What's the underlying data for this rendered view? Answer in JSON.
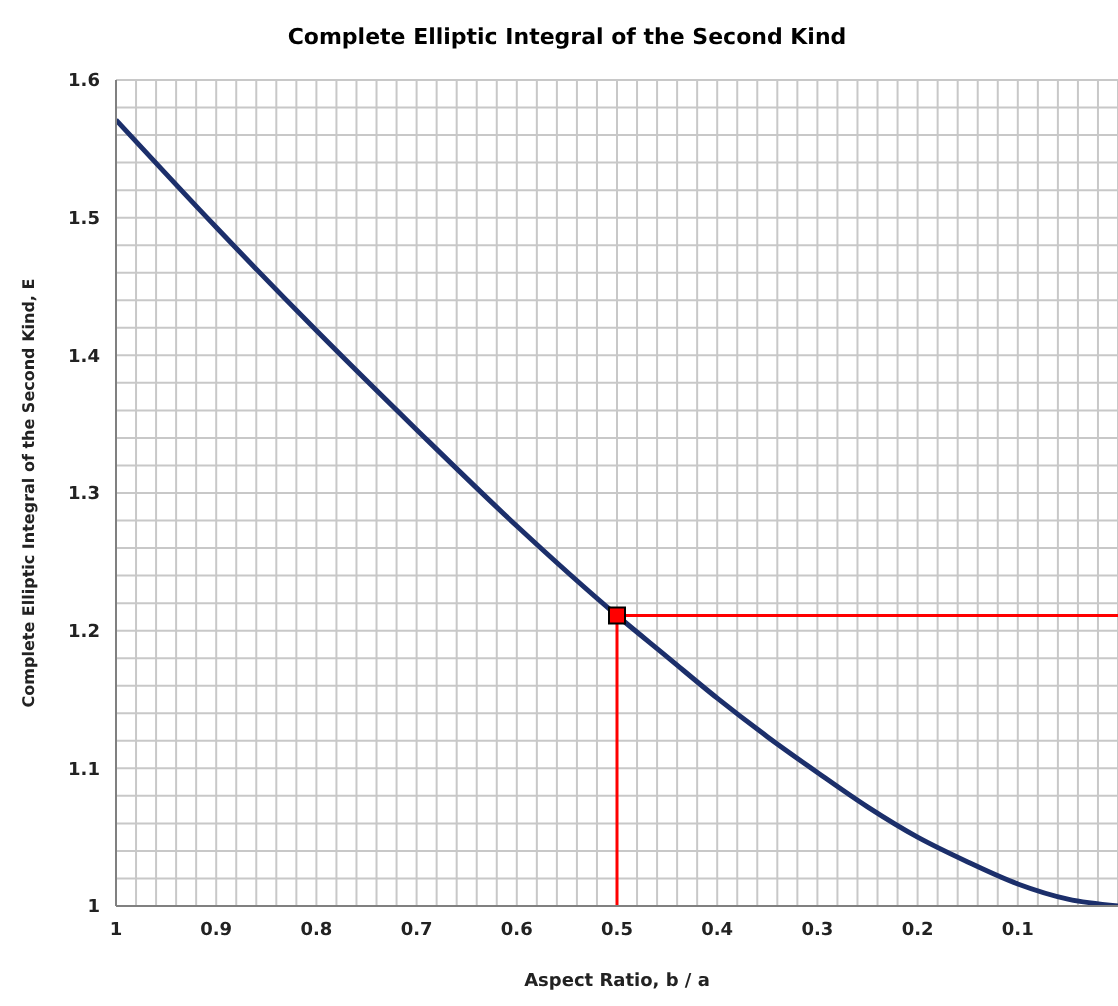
{
  "chart_data": {
    "type": "line",
    "title": "Complete  Elliptic Integral of the Second  Kind",
    "xlabel": "Aspect Ratio,  b / a",
    "ylabel": "Complete Elliptic Integral of the Second Kind,  E",
    "xlim": [
      1,
      0
    ],
    "ylim": [
      1,
      1.6
    ],
    "xticks": [
      1,
      {
        "value": 0.98,
        "label": null
      },
      {
        "value": 0.96,
        "label": null
      },
      {
        "value": 0.94,
        "label": null
      },
      {
        "value": 0.92,
        "label": null
      },
      0.9,
      {
        "value": 0.88,
        "label": null
      },
      {
        "value": 0.86,
        "label": null
      },
      {
        "value": 0.84,
        "label": null
      },
      {
        "value": 0.82,
        "label": null
      },
      0.8,
      {
        "value": 0.78,
        "label": null
      },
      {
        "value": 0.76,
        "label": null
      },
      {
        "value": 0.74,
        "label": null
      },
      {
        "value": 0.72,
        "label": null
      },
      0.7,
      {
        "value": 0.68,
        "label": null
      },
      {
        "value": 0.66,
        "label": null
      },
      {
        "value": 0.64,
        "label": null
      },
      {
        "value": 0.62,
        "label": null
      },
      0.6,
      {
        "value": 0.58,
        "label": null
      },
      {
        "value": 0.56,
        "label": null
      },
      {
        "value": 0.54,
        "label": null
      },
      {
        "value": 0.52,
        "label": null
      },
      0.5,
      {
        "value": 0.48,
        "label": null
      },
      {
        "value": 0.46,
        "label": null
      },
      {
        "value": 0.44,
        "label": null
      },
      {
        "value": 0.42,
        "label": null
      },
      0.4,
      {
        "value": 0.38,
        "label": null
      },
      {
        "value": 0.36,
        "label": null
      },
      {
        "value": 0.34,
        "label": null
      },
      {
        "value": 0.32,
        "label": null
      },
      0.3,
      {
        "value": 0.28,
        "label": null
      },
      {
        "value": 0.26,
        "label": null
      },
      {
        "value": 0.24,
        "label": null
      },
      {
        "value": 0.22,
        "label": null
      },
      0.2,
      {
        "value": 0.18,
        "label": null
      },
      {
        "value": 0.16,
        "label": null
      },
      {
        "value": 0.14,
        "label": null
      },
      {
        "value": 0.12,
        "label": null
      },
      0.1,
      {
        "value": 0.08,
        "label": null
      },
      {
        "value": 0.06,
        "label": null
      },
      {
        "value": 0.04,
        "label": null
      },
      {
        "value": 0.02,
        "label": null
      },
      {
        "value": 0,
        "label": null
      }
    ],
    "yticks": [
      1,
      {
        "value": 1.02,
        "label": null
      },
      {
        "value": 1.04,
        "label": null
      },
      {
        "value": 1.06,
        "label": null
      },
      {
        "value": 1.08,
        "label": null
      },
      1.1,
      {
        "value": 1.12,
        "label": null
      },
      {
        "value": 1.14,
        "label": null
      },
      {
        "value": 1.16,
        "label": null
      },
      {
        "value": 1.18,
        "label": null
      },
      1.2,
      {
        "value": 1.22,
        "label": null
      },
      {
        "value": 1.24,
        "label": null
      },
      {
        "value": 1.26,
        "label": null
      },
      {
        "value": 1.28,
        "label": null
      },
      1.3,
      {
        "value": 1.32,
        "label": null
      },
      {
        "value": 1.34,
        "label": null
      },
      {
        "value": 1.36,
        "label": null
      },
      {
        "value": 1.38,
        "label": null
      },
      1.4,
      {
        "value": 1.42,
        "label": null
      },
      {
        "value": 1.44,
        "label": null
      },
      {
        "value": 1.46,
        "label": null
      },
      {
        "value": 1.48,
        "label": null
      },
      1.5,
      {
        "value": 1.52,
        "label": null
      },
      {
        "value": 1.54,
        "label": null
      },
      {
        "value": 1.56,
        "label": null
      },
      {
        "value": 1.58,
        "label": null
      },
      1.6
    ],
    "grid": true,
    "marker": "none",
    "line_style": "solid",
    "series": [
      {
        "color": "#ff0000",
        "x": [
          0.5,
          0.5,
          0
        ],
        "values": [
          1,
          1.211,
          1.211
        ]
      },
      {
        "color": "#1c2f6b",
        "x": [
          1,
          0.9,
          0.8,
          0.7,
          0.6,
          0.5,
          0.45,
          0.4,
          0.35,
          0.3,
          0.25,
          0.2,
          0.15,
          0.1,
          0.05,
          0
        ],
        "values": [
          1.571,
          1.493,
          1.418,
          1.346,
          1.276,
          1.211,
          1.181,
          1.151,
          1.123,
          1.097,
          1.072,
          1.05,
          1.032,
          1.016,
          1.005,
          1
        ]
      },
      {
        "type": "scatter",
        "color": "#ff0000",
        "marker": "square",
        "x": [
          0.5
        ],
        "values": [
          1.211
        ]
      }
    ]
  }
}
